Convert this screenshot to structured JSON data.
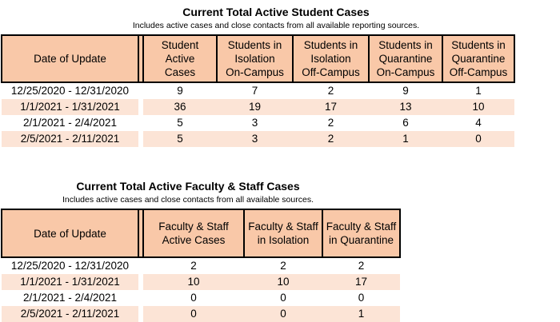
{
  "student": {
    "title": "Current Total Active Student Cases",
    "subtitle": "Includes active cases and close contacts from all available reporting sources.",
    "headers": [
      "Date of Update",
      "Student Active\nCases",
      "Students in\nIsolation\nOn-Campus",
      "Students in\nIsolation\nOff-Campus",
      "Students in\nQuarantine\nOn-Campus",
      "Students in\nQuarantine\nOff-Campus"
    ],
    "rows": [
      [
        "12/25/2020 - 12/31/2020",
        "9",
        "7",
        "2",
        "9",
        "1"
      ],
      [
        "1/1/2021 - 1/31/2021",
        "36",
        "19",
        "17",
        "13",
        "10"
      ],
      [
        "2/1/2021 - 2/4/2021",
        "5",
        "3",
        "2",
        "6",
        "4"
      ],
      [
        "2/5/2021 - 2/11/2021",
        "5",
        "3",
        "2",
        "1",
        "0"
      ]
    ]
  },
  "faculty": {
    "title": "Current Total Active Faculty & Staff Cases",
    "subtitle": "Includes active cases and close contacts from all available sources.",
    "headers": [
      "Date of Update",
      "Faculty & Staff\nActive Cases",
      "Faculty & Staff\nin Isolation",
      "Faculty & Staff\nin Quarantine"
    ],
    "rows": [
      [
        "12/25/2020 - 12/31/2020",
        "2",
        "2",
        "2"
      ],
      [
        "1/1/2021 - 1/31/2021",
        "10",
        "10",
        "17"
      ],
      [
        "2/1/2021 - 2/4/2021",
        "0",
        "0",
        "0"
      ],
      [
        "2/5/2021 - 2/11/2021",
        "0",
        "0",
        "1"
      ]
    ]
  },
  "colors": {
    "header_fill": "#f9c8a8",
    "stripe_fill": "#fce4d6"
  }
}
